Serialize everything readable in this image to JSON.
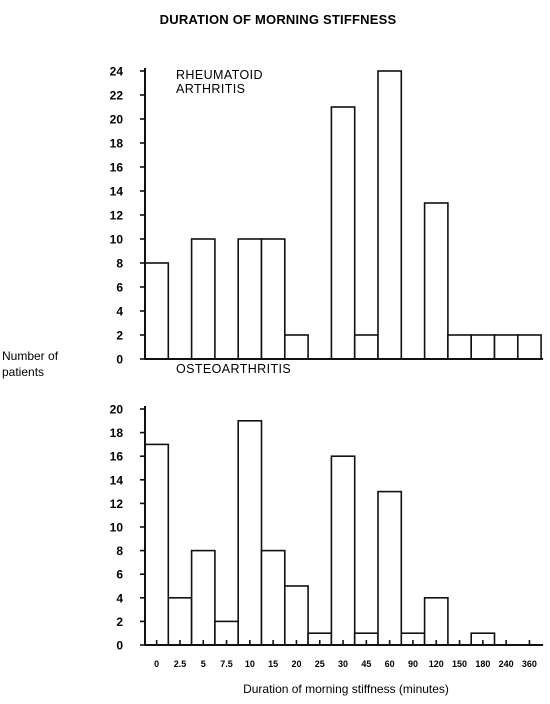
{
  "title": "DURATION OF MORNING STIFFNESS",
  "ylabel_lines": [
    "Number of",
    "patients"
  ],
  "xlabel": "Duration of morning stiffness (minutes)",
  "chart_data": [
    {
      "type": "bar",
      "title": "RHEUMATOID ARTHRITIS",
      "title_lines": [
        "RHEUMATOID",
        "ARTHRITIS"
      ],
      "ylim": [
        0,
        24
      ],
      "yticks": [
        0,
        2,
        4,
        6,
        8,
        10,
        12,
        14,
        16,
        18,
        20,
        22,
        24
      ],
      "categories": [
        "0",
        "2.5",
        "5",
        "7.5",
        "10",
        "15",
        "20",
        "25",
        "30",
        "45",
        "60",
        "90",
        "120",
        "150",
        "180",
        "240",
        "360"
      ],
      "values": [
        8,
        0,
        10,
        0,
        10,
        10,
        2,
        0,
        21,
        2,
        24,
        0,
        13,
        2,
        2,
        2,
        2
      ]
    },
    {
      "type": "bar",
      "title": "OSTEOARTHRITIS",
      "title_lines": [
        "OSTEOARTHRITIS"
      ],
      "ylim": [
        0,
        20
      ],
      "yticks": [
        0,
        2,
        4,
        6,
        8,
        10,
        12,
        14,
        16,
        18,
        20
      ],
      "categories": [
        "0",
        "2.5",
        "5",
        "7.5",
        "10",
        "15",
        "20",
        "25",
        "30",
        "45",
        "60",
        "90",
        "120",
        "150",
        "180",
        "240",
        "360"
      ],
      "values": [
        17,
        4,
        8,
        2,
        19,
        8,
        5,
        1,
        16,
        1,
        13,
        1,
        4,
        0,
        1,
        0,
        0
      ],
      "xtick_labels": [
        "0",
        "2.5",
        "5",
        "7.5",
        "10",
        "15",
        "20",
        "25",
        "30",
        "45",
        "60",
        "90",
        "120",
        "150",
        "180",
        "240",
        "360"
      ]
    }
  ]
}
